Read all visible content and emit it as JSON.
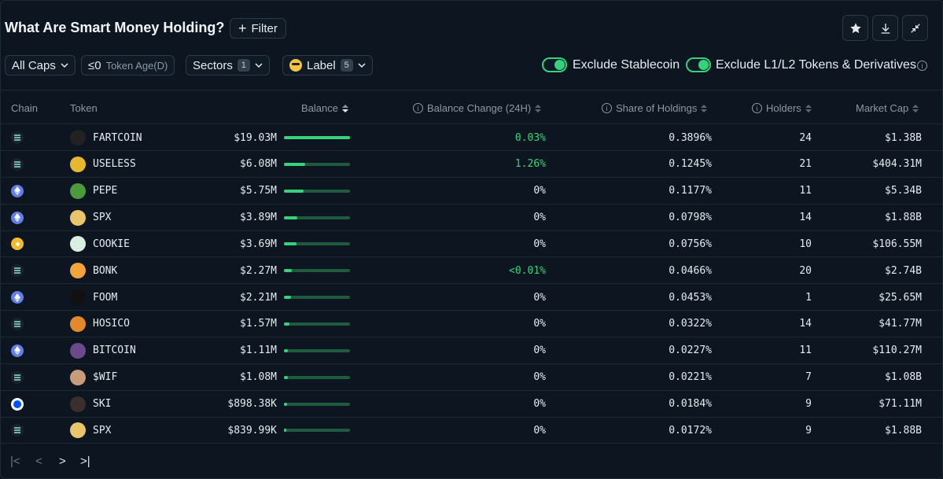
{
  "header": {
    "title": "What Are Smart Money Holding?",
    "filter_label": "Filter"
  },
  "filters": {
    "caps_label": "All Caps",
    "age_prefix": "≤0",
    "age_label": "Token Age(D)",
    "sectors_label": "Sectors",
    "sectors_count": "1",
    "label_label": "Label",
    "label_count": "5",
    "exclude_stablecoin": "Exclude Stablecoin",
    "exclude_l1l2": "Exclude L1/L2 Tokens & Derivatives"
  },
  "columns": {
    "chain": "Chain",
    "token": "Token",
    "balance": "Balance",
    "balance_change": "Balance Change (24H)",
    "share": "Share of Holdings",
    "holders": "Holders",
    "market_cap": "Market Cap"
  },
  "rows": [
    {
      "chain": "solana",
      "token": "FARTCOIN",
      "balance": "$19.03M",
      "bar": 1.0,
      "change": "0.03%",
      "change_positive": true,
      "share": "0.3896%",
      "holders": "24",
      "mcap": "$1.38B",
      "icon_color": "#222222"
    },
    {
      "chain": "solana",
      "token": "USELESS",
      "balance": "$6.08M",
      "bar": 0.32,
      "change": "1.26%",
      "change_positive": true,
      "share": "0.1245%",
      "holders": "21",
      "mcap": "$404.31M",
      "icon_color": "#e6b830"
    },
    {
      "chain": "ethereum",
      "token": "PEPE",
      "balance": "$5.75M",
      "bar": 0.3,
      "change": "0%",
      "change_positive": false,
      "share": "0.1177%",
      "holders": "11",
      "mcap": "$5.34B",
      "icon_color": "#4c9a3c"
    },
    {
      "chain": "ethereum",
      "token": "SPX",
      "balance": "$3.89M",
      "bar": 0.2,
      "change": "0%",
      "change_positive": false,
      "share": "0.0798%",
      "holders": "14",
      "mcap": "$1.88B",
      "icon_color": "#e8c46a"
    },
    {
      "chain": "bnb",
      "token": "COOKIE",
      "balance": "$3.69M",
      "bar": 0.19,
      "change": "0%",
      "change_positive": false,
      "share": "0.0756%",
      "holders": "10",
      "mcap": "$106.55M",
      "icon_color": "#d9efe0"
    },
    {
      "chain": "solana",
      "token": "BONK",
      "balance": "$2.27M",
      "bar": 0.12,
      "change": "<0.01%",
      "change_positive": true,
      "share": "0.0466%",
      "holders": "20",
      "mcap": "$2.74B",
      "icon_color": "#f2a33a"
    },
    {
      "chain": "ethereum",
      "token": "FOOM",
      "balance": "$2.21M",
      "bar": 0.11,
      "change": "0%",
      "change_positive": false,
      "share": "0.0453%",
      "holders": "1",
      "mcap": "$25.65M",
      "icon_color": "#111111"
    },
    {
      "chain": "solana",
      "token": "HOSICO",
      "balance": "$1.57M",
      "bar": 0.08,
      "change": "0%",
      "change_positive": false,
      "share": "0.0322%",
      "holders": "14",
      "mcap": "$41.77M",
      "icon_color": "#e28a2b"
    },
    {
      "chain": "ethereum",
      "token": "BITCOIN",
      "balance": "$1.11M",
      "bar": 0.06,
      "change": "0%",
      "change_positive": false,
      "share": "0.0227%",
      "holders": "11",
      "mcap": "$110.27M",
      "icon_color": "#6b4a8c"
    },
    {
      "chain": "solana",
      "token": "$WIF",
      "balance": "$1.08M",
      "bar": 0.06,
      "change": "0%",
      "change_positive": false,
      "share": "0.0221%",
      "holders": "7",
      "mcap": "$1.08B",
      "icon_color": "#c79c7a"
    },
    {
      "chain": "base",
      "token": "SKI",
      "balance": "$898.38K",
      "bar": 0.05,
      "change": "0%",
      "change_positive": false,
      "share": "0.0184%",
      "holders": "9",
      "mcap": "$71.11M",
      "icon_color": "#3a2f2a"
    },
    {
      "chain": "solana",
      "token": "SPX",
      "balance": "$839.99K",
      "bar": 0.04,
      "change": "0%",
      "change_positive": false,
      "share": "0.0172%",
      "holders": "9",
      "mcap": "$1.88B",
      "icon_color": "#e8c46a"
    }
  ],
  "colors": {
    "accent_green": "#35d27c",
    "solana": "#1a2230",
    "ethereum": "#627eea",
    "bnb": "#f3ba2f",
    "base": "#ffffff"
  }
}
